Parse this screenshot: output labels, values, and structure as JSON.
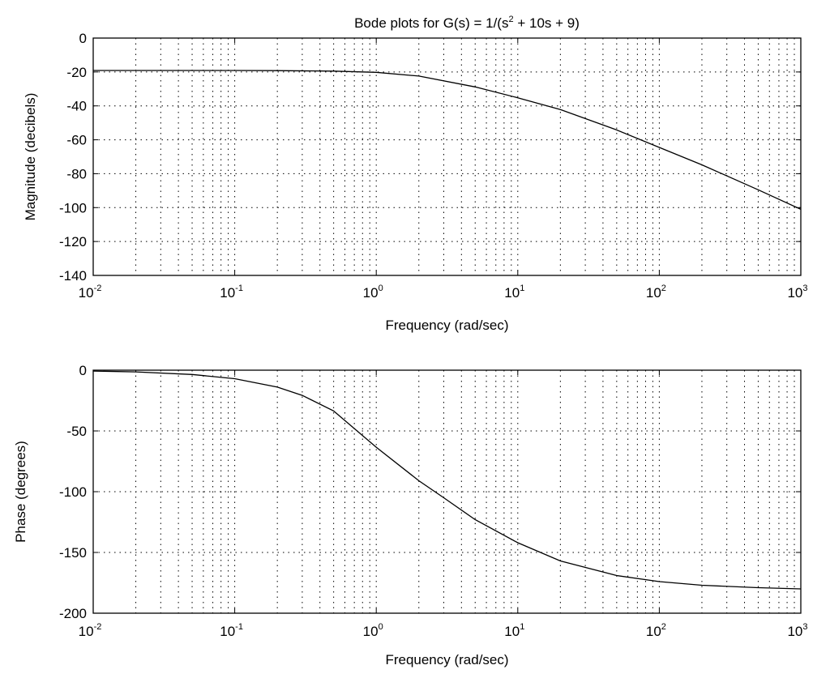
{
  "title": {
    "prefix": "Bode plots for G(s) = 1/(s",
    "power": "2",
    "suffix": " + 10s + 9)"
  },
  "chart_data": [
    {
      "name": "magnitude",
      "type": "line",
      "title": "Bode plots for G(s) = 1/(s^2 + 10s + 9)",
      "xlabel": "Frequency (rad/sec)",
      "ylabel": "Magnitude (decibels)",
      "xscale": "log",
      "xlim": [
        0.01,
        1000
      ],
      "ylim": [
        -140,
        0
      ],
      "x_tick_labels": [
        {
          "base": "10",
          "exp": "-2"
        },
        {
          "base": "10",
          "exp": "-1"
        },
        {
          "base": "10",
          "exp": "0"
        },
        {
          "base": "10",
          "exp": "1"
        },
        {
          "base": "10",
          "exp": "2"
        },
        {
          "base": "10",
          "exp": "3"
        }
      ],
      "x_tick_values": [
        0.01,
        0.1,
        1,
        10,
        100,
        1000
      ],
      "y_ticks": [
        0,
        -20,
        -40,
        -60,
        -80,
        -100,
        -120,
        -140
      ],
      "y_tick_labels": [
        "0",
        "-20",
        "-40",
        "-60",
        "-80",
        "-100",
        "-120",
        "-140"
      ],
      "grid": true,
      "x": [
        0.01,
        0.02,
        0.05,
        0.1,
        0.2,
        0.5,
        1,
        2,
        5,
        10,
        20,
        50,
        100,
        200,
        500,
        1000
      ],
      "y": [
        -19.1,
        -19.1,
        -19.1,
        -19.1,
        -19.2,
        -19.5,
        -20.2,
        -22.4,
        -28.8,
        -35.2,
        -42.2,
        -54.2,
        -64.5,
        -74.8,
        -89.5,
        -101.0
      ]
    },
    {
      "name": "phase",
      "type": "line",
      "xlabel": "Frequency (rad/sec)",
      "ylabel": "Phase (degrees)",
      "xscale": "log",
      "xlim": [
        0.01,
        1000
      ],
      "ylim": [
        -200,
        0
      ],
      "x_tick_labels": [
        {
          "base": "10",
          "exp": "-2"
        },
        {
          "base": "10",
          "exp": "-1"
        },
        {
          "base": "10",
          "exp": "0"
        },
        {
          "base": "10",
          "exp": "1"
        },
        {
          "base": "10",
          "exp": "2"
        },
        {
          "base": "10",
          "exp": "3"
        }
      ],
      "x_tick_values": [
        0.01,
        0.1,
        1,
        10,
        100,
        1000
      ],
      "y_ticks": [
        0,
        -50,
        -100,
        -150,
        -200
      ],
      "y_tick_labels": [
        "0",
        "-50",
        "-100",
        "-150",
        "-200"
      ],
      "grid": true,
      "x": [
        0.01,
        0.02,
        0.05,
        0.1,
        0.2,
        0.3,
        0.5,
        1,
        2,
        3,
        5,
        10,
        20,
        50,
        100,
        200,
        500,
        1000
      ],
      "y": [
        -0.7,
        -1.4,
        -3.5,
        -7.0,
        -13.9,
        -20.7,
        -33.5,
        -63.4,
        -91.0,
        -105.0,
        -123.0,
        -142.0,
        -157.0,
        -169.0,
        -174.0,
        -177.0,
        -179.0,
        -180.0
      ]
    }
  ]
}
